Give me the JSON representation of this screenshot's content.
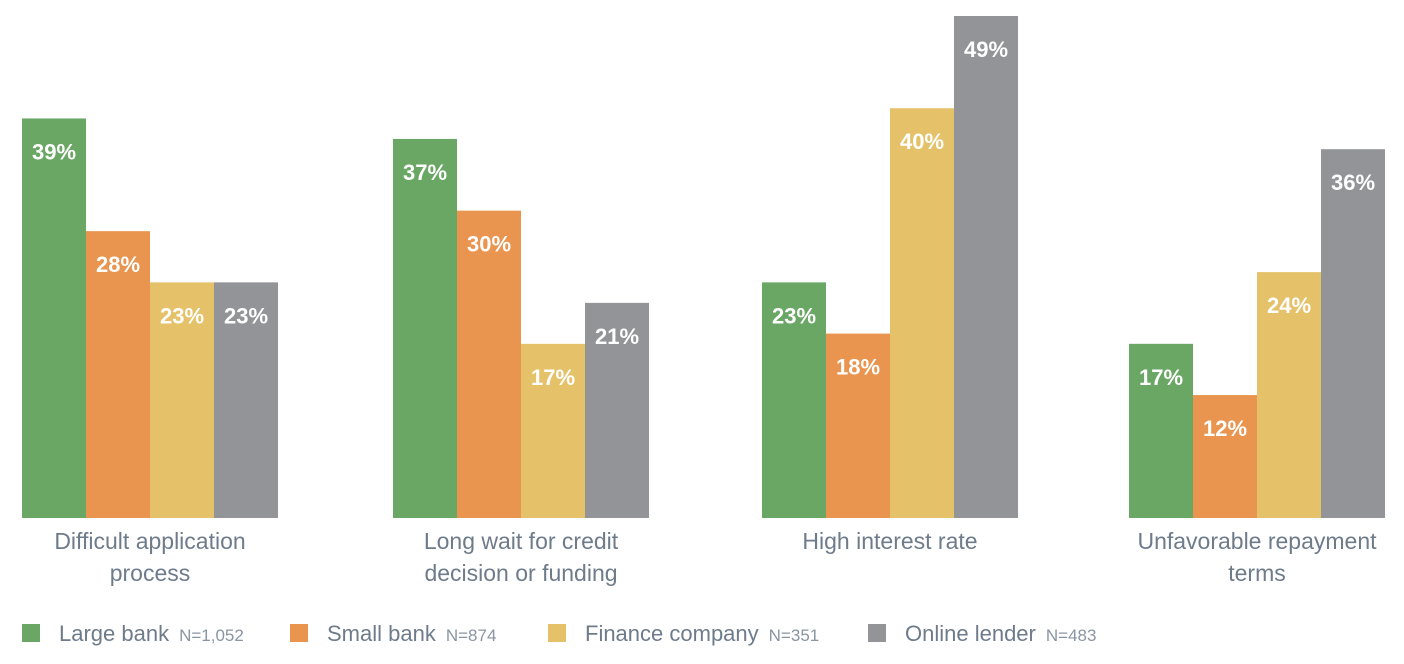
{
  "chart_data": {
    "type": "bar",
    "categories": [
      [
        "Difficult application",
        "process"
      ],
      [
        "Long wait for credit",
        "decision or funding"
      ],
      [
        "High interest rate"
      ],
      [
        "Unfavorable repayment",
        "terms"
      ]
    ],
    "series": [
      {
        "name": "Large bank",
        "n": "N=1,052",
        "color": "#6aa765",
        "values": [
          39,
          37,
          23,
          17
        ]
      },
      {
        "name": "Small bank",
        "n": "N=874",
        "color": "#e9954f",
        "values": [
          28,
          30,
          18,
          12
        ]
      },
      {
        "name": "Finance company",
        "n": "N=351",
        "color": "#e5c269",
        "values": [
          23,
          17,
          40,
          24
        ]
      },
      {
        "name": "Online lender",
        "n": "N=483",
        "color": "#939498",
        "values": [
          23,
          21,
          49,
          36
        ]
      }
    ],
    "value_suffix": "%",
    "ylim": [
      0,
      49
    ],
    "legend_position": "bottom",
    "grid": false
  }
}
